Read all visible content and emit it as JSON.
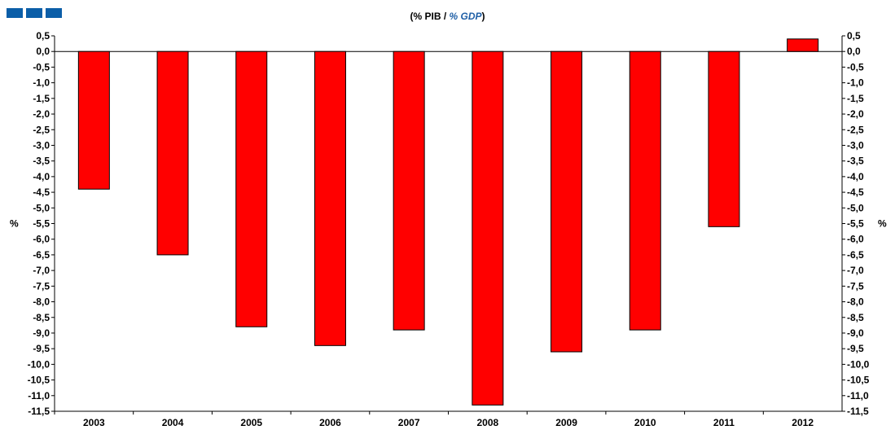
{
  "logo": {
    "name": "logo",
    "color": "#0b5ea8"
  },
  "title": {
    "part1": "(% PIB / ",
    "part2": "% GDP",
    "part3": ")"
  },
  "chart_data": {
    "type": "bar",
    "categories": [
      "2003",
      "2004",
      "2005",
      "2006",
      "2007",
      "2008",
      "2009",
      "2010",
      "2011",
      "2012"
    ],
    "values": [
      -4.4,
      -6.5,
      -8.8,
      -9.4,
      -8.9,
      -11.3,
      -9.6,
      -8.9,
      -5.6,
      0.4
    ],
    "ylim": [
      -11.5,
      0.5
    ],
    "ytick_step": 0.5,
    "ylabel_left": "%",
    "ylabel_right": "%",
    "bar_color": "#ff0000",
    "grid": false,
    "decimal_separator": ","
  }
}
